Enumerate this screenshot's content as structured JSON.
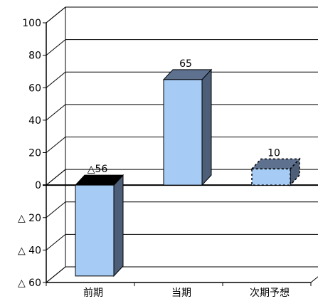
{
  "chart_data": {
    "type": "bar",
    "style": "3d-column",
    "title": "",
    "xlabel": "",
    "ylabel": "",
    "ylim": [
      -60,
      100
    ],
    "y_ticks": [
      {
        "value": 100,
        "label": "100"
      },
      {
        "value": 80,
        "label": "80"
      },
      {
        "value": 60,
        "label": "60"
      },
      {
        "value": 40,
        "label": "40"
      },
      {
        "value": 20,
        "label": "20"
      },
      {
        "value": 0,
        "label": "0"
      },
      {
        "value": -20,
        "label": "△ 20"
      },
      {
        "value": -40,
        "label": "△ 40"
      },
      {
        "value": -60,
        "label": "△ 60"
      }
    ],
    "grid": true,
    "categories": [
      "前期",
      "当期",
      "次期予想"
    ],
    "values": [
      -56,
      65,
      10
    ],
    "data_labels": [
      "△56",
      "65",
      "10"
    ],
    "bar_styles": [
      "solid",
      "solid",
      "dashed"
    ],
    "colors": {
      "bar_face": "#a6cbf5",
      "bar_side": "#4d5f78",
      "bar_top": "#5e7290",
      "bar_top_negative": "#000000",
      "grid": "#000000",
      "axis": "#000000"
    }
  }
}
